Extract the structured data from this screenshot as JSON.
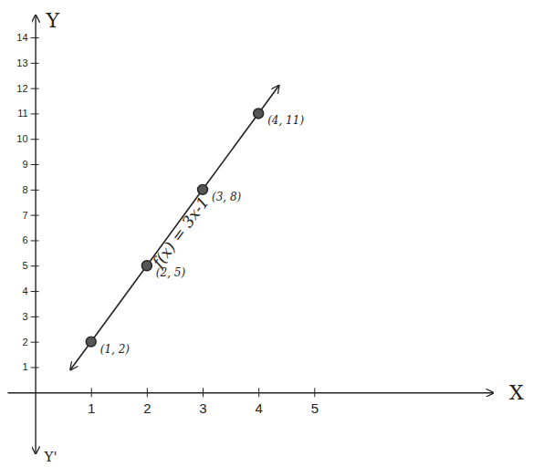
{
  "chart_data": {
    "type": "line",
    "xlabel": "X",
    "ylabel": "Y",
    "ylabel_bottom": "Y'",
    "x": [
      1,
      2,
      3,
      4
    ],
    "series": [
      {
        "name": "f(x) = 3x-1",
        "color": "#222222",
        "marker": "circle",
        "values": [
          2,
          5,
          8,
          11
        ],
        "value_labels": [
          "(1, 2)",
          "(2, 5)",
          "(3, 8)",
          "(4, 11)"
        ]
      }
    ],
    "xlim": [
      -0.5,
      8.2
    ],
    "ylim": [
      -2.4,
      14.9
    ],
    "xticks": [
      1,
      2,
      3,
      4,
      5
    ],
    "yticks": [
      1,
      2,
      3,
      4,
      5,
      6,
      7,
      8,
      9,
      10,
      11,
      12,
      13,
      14
    ],
    "grid": false,
    "data_labels": true
  }
}
